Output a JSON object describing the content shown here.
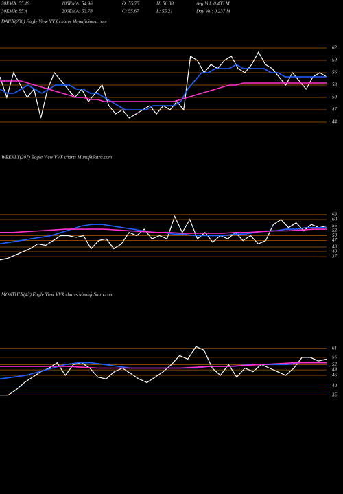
{
  "header": {
    "rows": [
      [
        "20EMA: 55.19",
        "100EMA: 54.96",
        "O: 55.75",
        "H: 56.38",
        "Avg Vol: 0.433 M"
      ],
      [
        "30EMA: 55.4",
        "200EMA: 53.78",
        "C: 55.67",
        "L: 55.21",
        "Day Vol: 0.237 M"
      ]
    ]
  },
  "chart_data": [
    {
      "type": "line",
      "title": "DAILY(230) Eagle  View VVX charts MunafaSutra.com",
      "ylim": [
        42,
        67
      ],
      "yticks": [
        62,
        59,
        56,
        53,
        50,
        47,
        44
      ],
      "grid": true,
      "grid_color": "#b35a00",
      "series": [
        {
          "name": "Price",
          "color": "#ffffff",
          "values": [
            55,
            50,
            56,
            53,
            50,
            52,
            45,
            52,
            56,
            54,
            52,
            50,
            52,
            49,
            51,
            53,
            48,
            46,
            47,
            45,
            46,
            47,
            48,
            46,
            48,
            47,
            49,
            47,
            60,
            59,
            56,
            58,
            57,
            59,
            60,
            57,
            56,
            58,
            61,
            58,
            57,
            55,
            53,
            56,
            54,
            52,
            55,
            56,
            55
          ]
        },
        {
          "name": "EMA",
          "color": "#2060ff",
          "values": [
            52,
            51,
            51,
            52,
            53,
            52,
            51,
            52,
            53,
            53,
            53,
            52,
            52,
            51,
            51,
            50,
            49,
            48,
            47,
            47,
            47,
            47,
            48,
            48,
            48,
            48,
            49,
            52,
            54,
            56,
            56,
            57,
            57,
            57,
            58,
            57,
            57,
            57,
            57,
            56,
            56,
            55,
            55,
            55,
            55,
            55,
            55,
            55
          ]
        },
        {
          "name": "200EMA",
          "color": "#ff33cc",
          "values": [
            54,
            54,
            54,
            54,
            53.5,
            53,
            52.5,
            52,
            51.5,
            51,
            50.5,
            50,
            50,
            49.5,
            49.5,
            49,
            49,
            49,
            49,
            49,
            49,
            49,
            49,
            49,
            49,
            49,
            49.5,
            50,
            50.5,
            51,
            51.5,
            52,
            52.5,
            53,
            53,
            53.5,
            53.5,
            53.5,
            53.5,
            53.5,
            53.5,
            53.5,
            53.5,
            53.5,
            53.5,
            53.5,
            53.5,
            53.5
          ]
        }
      ]
    },
    {
      "type": "line",
      "title": "WEEKLY(207) Eagle  View VVX charts MunafaSutra.com",
      "ylim": [
        26,
        94
      ],
      "yticks": [
        63,
        60,
        56,
        53,
        50,
        47,
        43,
        40,
        37
      ],
      "grid": true,
      "grid_color": "#b35a00",
      "series": [
        {
          "name": "Price",
          "color": "#ffffff",
          "values": [
            35,
            36,
            38,
            40,
            42,
            45,
            44,
            47,
            50,
            50,
            49,
            50,
            42,
            47,
            48,
            42,
            45,
            52,
            50,
            54,
            48,
            50,
            48,
            62,
            52,
            60,
            48,
            52,
            46,
            50,
            48,
            52,
            47,
            50,
            45,
            47,
            57,
            60,
            55,
            58,
            53,
            57,
            55,
            56
          ]
        },
        {
          "name": "EMA",
          "color": "#2060ff",
          "values": [
            45,
            46,
            47,
            48,
            49,
            50,
            52,
            54,
            56,
            57,
            57,
            56,
            55,
            54,
            53,
            52,
            52,
            51,
            51,
            50,
            50,
            50,
            50,
            51,
            51,
            52,
            53,
            53,
            54,
            54,
            55,
            55,
            55
          ]
        },
        {
          "name": "200EMA",
          "color": "#ff33cc",
          "values": [
            52,
            52,
            52.5,
            53,
            53.5,
            54,
            54,
            54,
            54,
            53.5,
            53,
            52.5,
            52,
            52,
            51.5,
            51.5,
            51.5,
            51.5,
            52,
            52,
            52.5,
            53,
            53,
            53.5,
            54,
            54
          ]
        }
      ]
    },
    {
      "type": "line",
      "title": "MONTHLY(42) Eagle  View VVX charts MunafaSutra.com",
      "ylim": [
        18,
        87
      ],
      "yticks": [
        61,
        56,
        52,
        49,
        46,
        40,
        35
      ],
      "grid": true,
      "grid_color": "#b35a00",
      "series": [
        {
          "name": "Price",
          "color": "#ffffff",
          "values": [
            35,
            35,
            38,
            42,
            45,
            48,
            50,
            53,
            46,
            52,
            53,
            50,
            45,
            44,
            48,
            50,
            47,
            44,
            42,
            45,
            48,
            52,
            57,
            55,
            62,
            60,
            50,
            46,
            52,
            45,
            50,
            48,
            52,
            50,
            48,
            46,
            50,
            56,
            56,
            54,
            55
          ]
        },
        {
          "name": "EMA",
          "color": "#2060ff",
          "values": [
            44,
            45,
            46,
            48,
            50,
            52,
            53,
            53,
            52,
            51,
            50,
            50,
            50,
            50,
            50,
            50,
            51,
            51,
            51,
            52,
            52,
            52,
            52,
            53,
            53,
            53
          ]
        },
        {
          "name": "200EMA",
          "color": "#ff33cc",
          "values": [
            51,
            51,
            51,
            51,
            51,
            50.5,
            50,
            50,
            50,
            50,
            50,
            50,
            50.5,
            51,
            51,
            51.5,
            52,
            52.5,
            53,
            53,
            53
          ]
        }
      ]
    }
  ]
}
